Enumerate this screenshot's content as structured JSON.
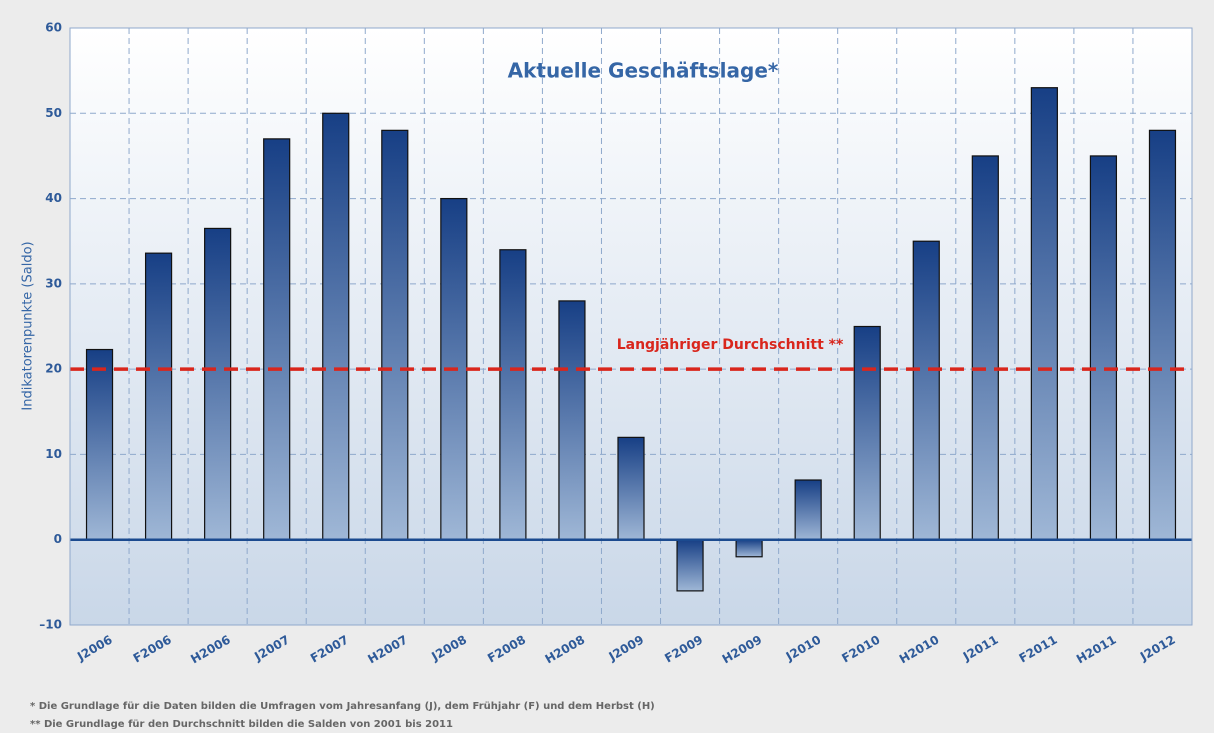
{
  "chart_data": {
    "type": "bar",
    "title": "Aktuelle Geschäftslage*",
    "y_label": "Indikatorenpunkte (Saldo)",
    "categories": [
      "J2006",
      "F2006",
      "H2006",
      "J2007",
      "F2007",
      "H2007",
      "J2008",
      "F2008",
      "H2008",
      "J2009",
      "F2009",
      "H2009",
      "J2010",
      "F2010",
      "H2010",
      "J2011",
      "F2011",
      "H2011",
      "J2012"
    ],
    "values": [
      22.3,
      33.6,
      36.5,
      47,
      50,
      48,
      40,
      34,
      28,
      12,
      -6,
      -2,
      7,
      25,
      35,
      45,
      53,
      45,
      48
    ],
    "color": "#173f85",
    "ylim": [
      -10,
      60
    ],
    "yticks": [
      {
        "value": -10,
        "label": "–10"
      },
      0,
      10,
      20,
      30,
      40,
      50,
      60
    ],
    "grid": true,
    "reference_line": {
      "value": 20,
      "label": "Langjähriger Durchschnitt **",
      "color": "#d9261c"
    },
    "footnotes": [
      "* Die Grundlage für die Daten bilden die Umfragen vom Jahresanfang (J), dem Frühjahr (F) und dem Herbst (H)",
      "** Die Grundlage für den Durchschnitt bilden die Salden von 2001 bis 2011"
    ]
  }
}
